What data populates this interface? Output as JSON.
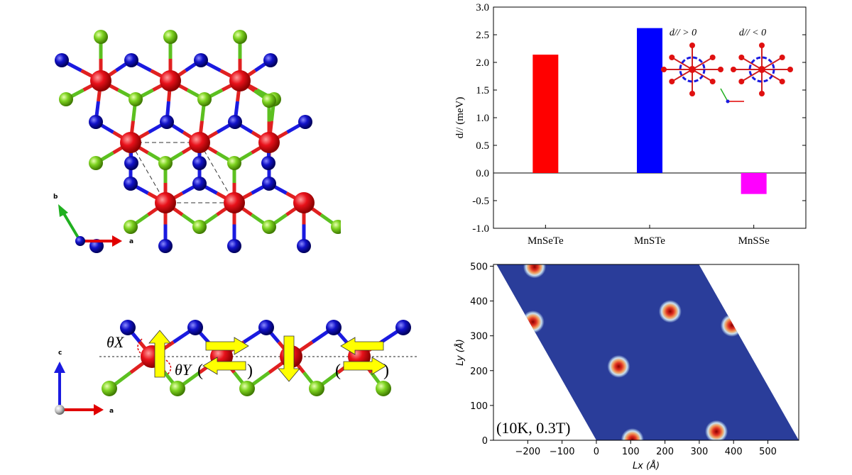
{
  "lattice_top": {
    "axis_b_label": "b",
    "axis_a_label": "a",
    "colors": {
      "mn": "#e8111a",
      "se": "#1212c8",
      "s": "#7ed321",
      "bond_red": "#e02020"
    }
  },
  "lattice_side": {
    "axis_c_label": "c",
    "axis_a_label": "a",
    "theta_x": "θX",
    "theta_y": "θY",
    "arrow_color": "#ffff00"
  },
  "chart_data": [
    {
      "type": "bar",
      "categories": [
        "MnSeTe",
        "MnSTe",
        "MnSSe"
      ],
      "values": [
        2.14,
        2.62,
        -0.38
      ],
      "colors": [
        "#ff0000",
        "#0000ff",
        "#ff00ff"
      ],
      "ylabel": "d// (meV)",
      "ylim": [
        -1.0,
        3.0
      ],
      "yticks": [
        "3.0",
        "2.5",
        "2.0",
        "1.5",
        "1.0",
        "0.5",
        "0.0",
        "-0.5",
        "-1.0"
      ],
      "inset_labels": [
        "d// > 0",
        "d// < 0"
      ]
    },
    {
      "type": "heatmap",
      "xlabel": "Lx (Å)",
      "ylabel": "Ly (Å)",
      "xticks": [
        "−200",
        "−100",
        "0",
        "100",
        "200",
        "300",
        "400",
        "500"
      ],
      "yticks": [
        "500",
        "400",
        "300",
        "200",
        "100",
        "0"
      ],
      "xlim": [
        -300,
        590
      ],
      "ylim": [
        0,
        505
      ],
      "annotation": "(10K, 0.3T)",
      "skyrmions": [
        {
          "x": -180,
          "y": 498
        },
        {
          "x": -185,
          "y": 340
        },
        {
          "x": 215,
          "y": 370
        },
        {
          "x": 395,
          "y": 330
        },
        {
          "x": 65,
          "y": 212
        },
        {
          "x": 350,
          "y": 25
        },
        {
          "x": 105,
          "y": 2
        }
      ]
    }
  ]
}
